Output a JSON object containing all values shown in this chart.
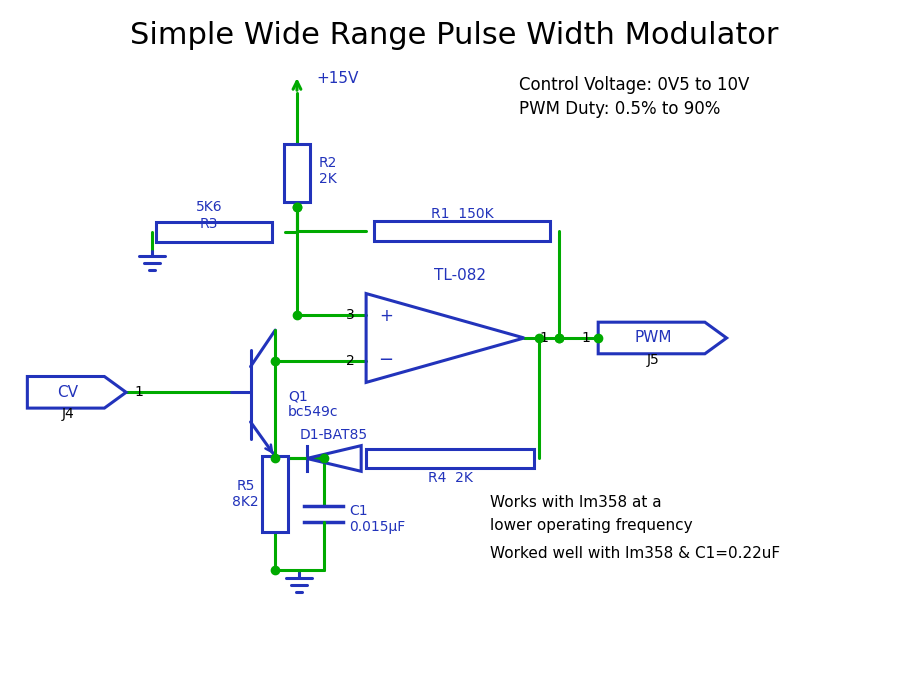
{
  "title": "Simple Wide Range Pulse Width Modulator",
  "title_fontsize": 22,
  "line_color_blue": "#2233BB",
  "line_color_green": "#00AA00",
  "bg_color": "#FFFFFF",
  "text_color": "#000000",
  "annotations": {
    "control_voltage": "Control Voltage: 0V5 to 10V",
    "pwm_duty": "PWM Duty: 0.5% to 90%",
    "works_with": "Works with lm358 at a",
    "lower_freq": "lower operating frequency",
    "worked_well": "Worked well with lm358 & C1=0.22uF"
  },
  "component_labels": {
    "R1": "R1  150K",
    "R2": "R2\n2K",
    "R3": "5K6\nR3",
    "R4": "R4  2K",
    "R5": "R5\n8K2",
    "C1": "C1\n0.015μF",
    "Q1": "Q1\nbc549c",
    "D1": "D1-BAT85",
    "opamp": "TL-082",
    "J4": "J4",
    "J5": "J5",
    "VCC": "+15V",
    "j4_pin": "1",
    "j5_pin": "1"
  }
}
